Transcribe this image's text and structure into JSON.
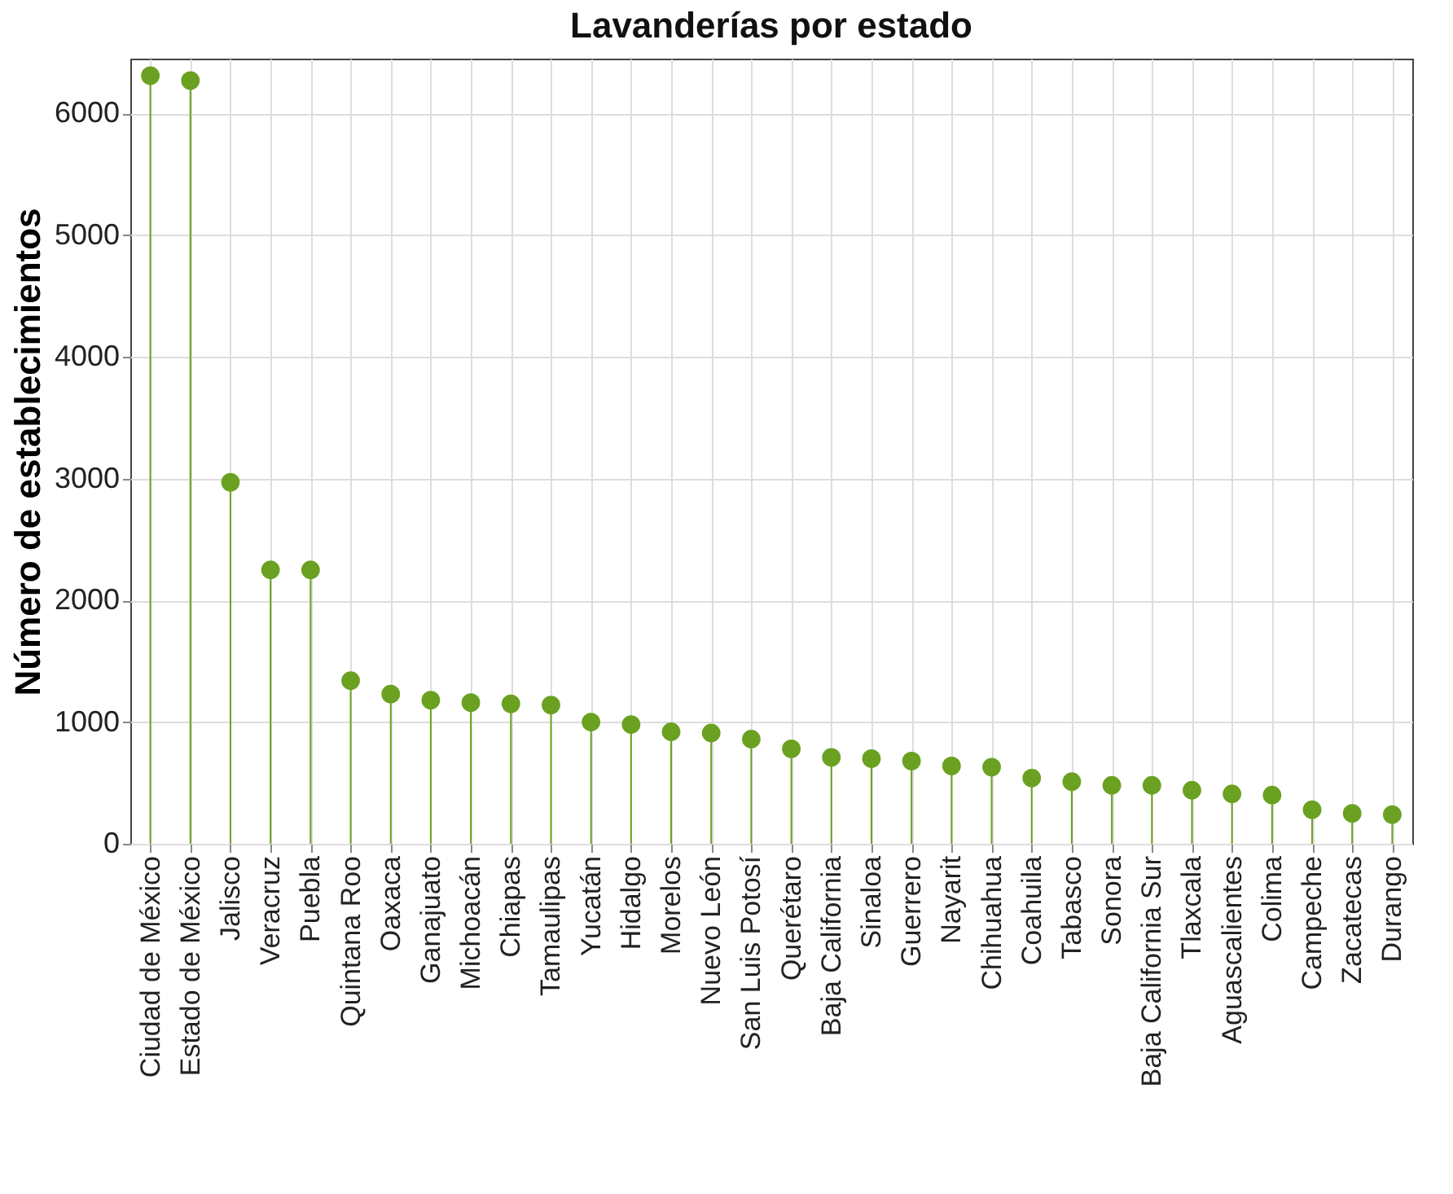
{
  "chart_data": {
    "type": "lollipop",
    "title": "Lavanderías por estado",
    "ylabel": "Número de establecimientos",
    "categories": [
      "Ciudad de México",
      "Estado de México",
      "Jalisco",
      "Veracruz",
      "Puebla",
      "Quintana Roo",
      "Oaxaca",
      "Ganajuato",
      "Michoacán",
      "Chiapas",
      "Tamaulipas",
      "Yucatán",
      "Hidalgo",
      "Morelos",
      "Nuevo León",
      "San Luis Potosí",
      "Querétaro",
      "Baja California",
      "Sinaloa",
      "Guerrero",
      "Nayarit",
      "Chihuahua",
      "Coahuila",
      "Tabasco",
      "Sonora",
      "Baja California Sur",
      "Tlaxcala",
      "Aguascalientes",
      "Colima",
      "Campeche",
      "Zacatecas",
      "Durango"
    ],
    "values": [
      6310,
      6270,
      2970,
      2250,
      2250,
      1340,
      1230,
      1180,
      1160,
      1150,
      1140,
      1000,
      980,
      920,
      910,
      860,
      780,
      710,
      700,
      680,
      640,
      630,
      540,
      510,
      480,
      480,
      440,
      410,
      400,
      280,
      250,
      240
    ],
    "color": "#6aa121",
    "ylim": [
      0,
      6450
    ],
    "yticks": [
      0,
      1000,
      2000,
      3000,
      4000,
      5000,
      6000
    ],
    "grid": true,
    "marker": "circle"
  }
}
